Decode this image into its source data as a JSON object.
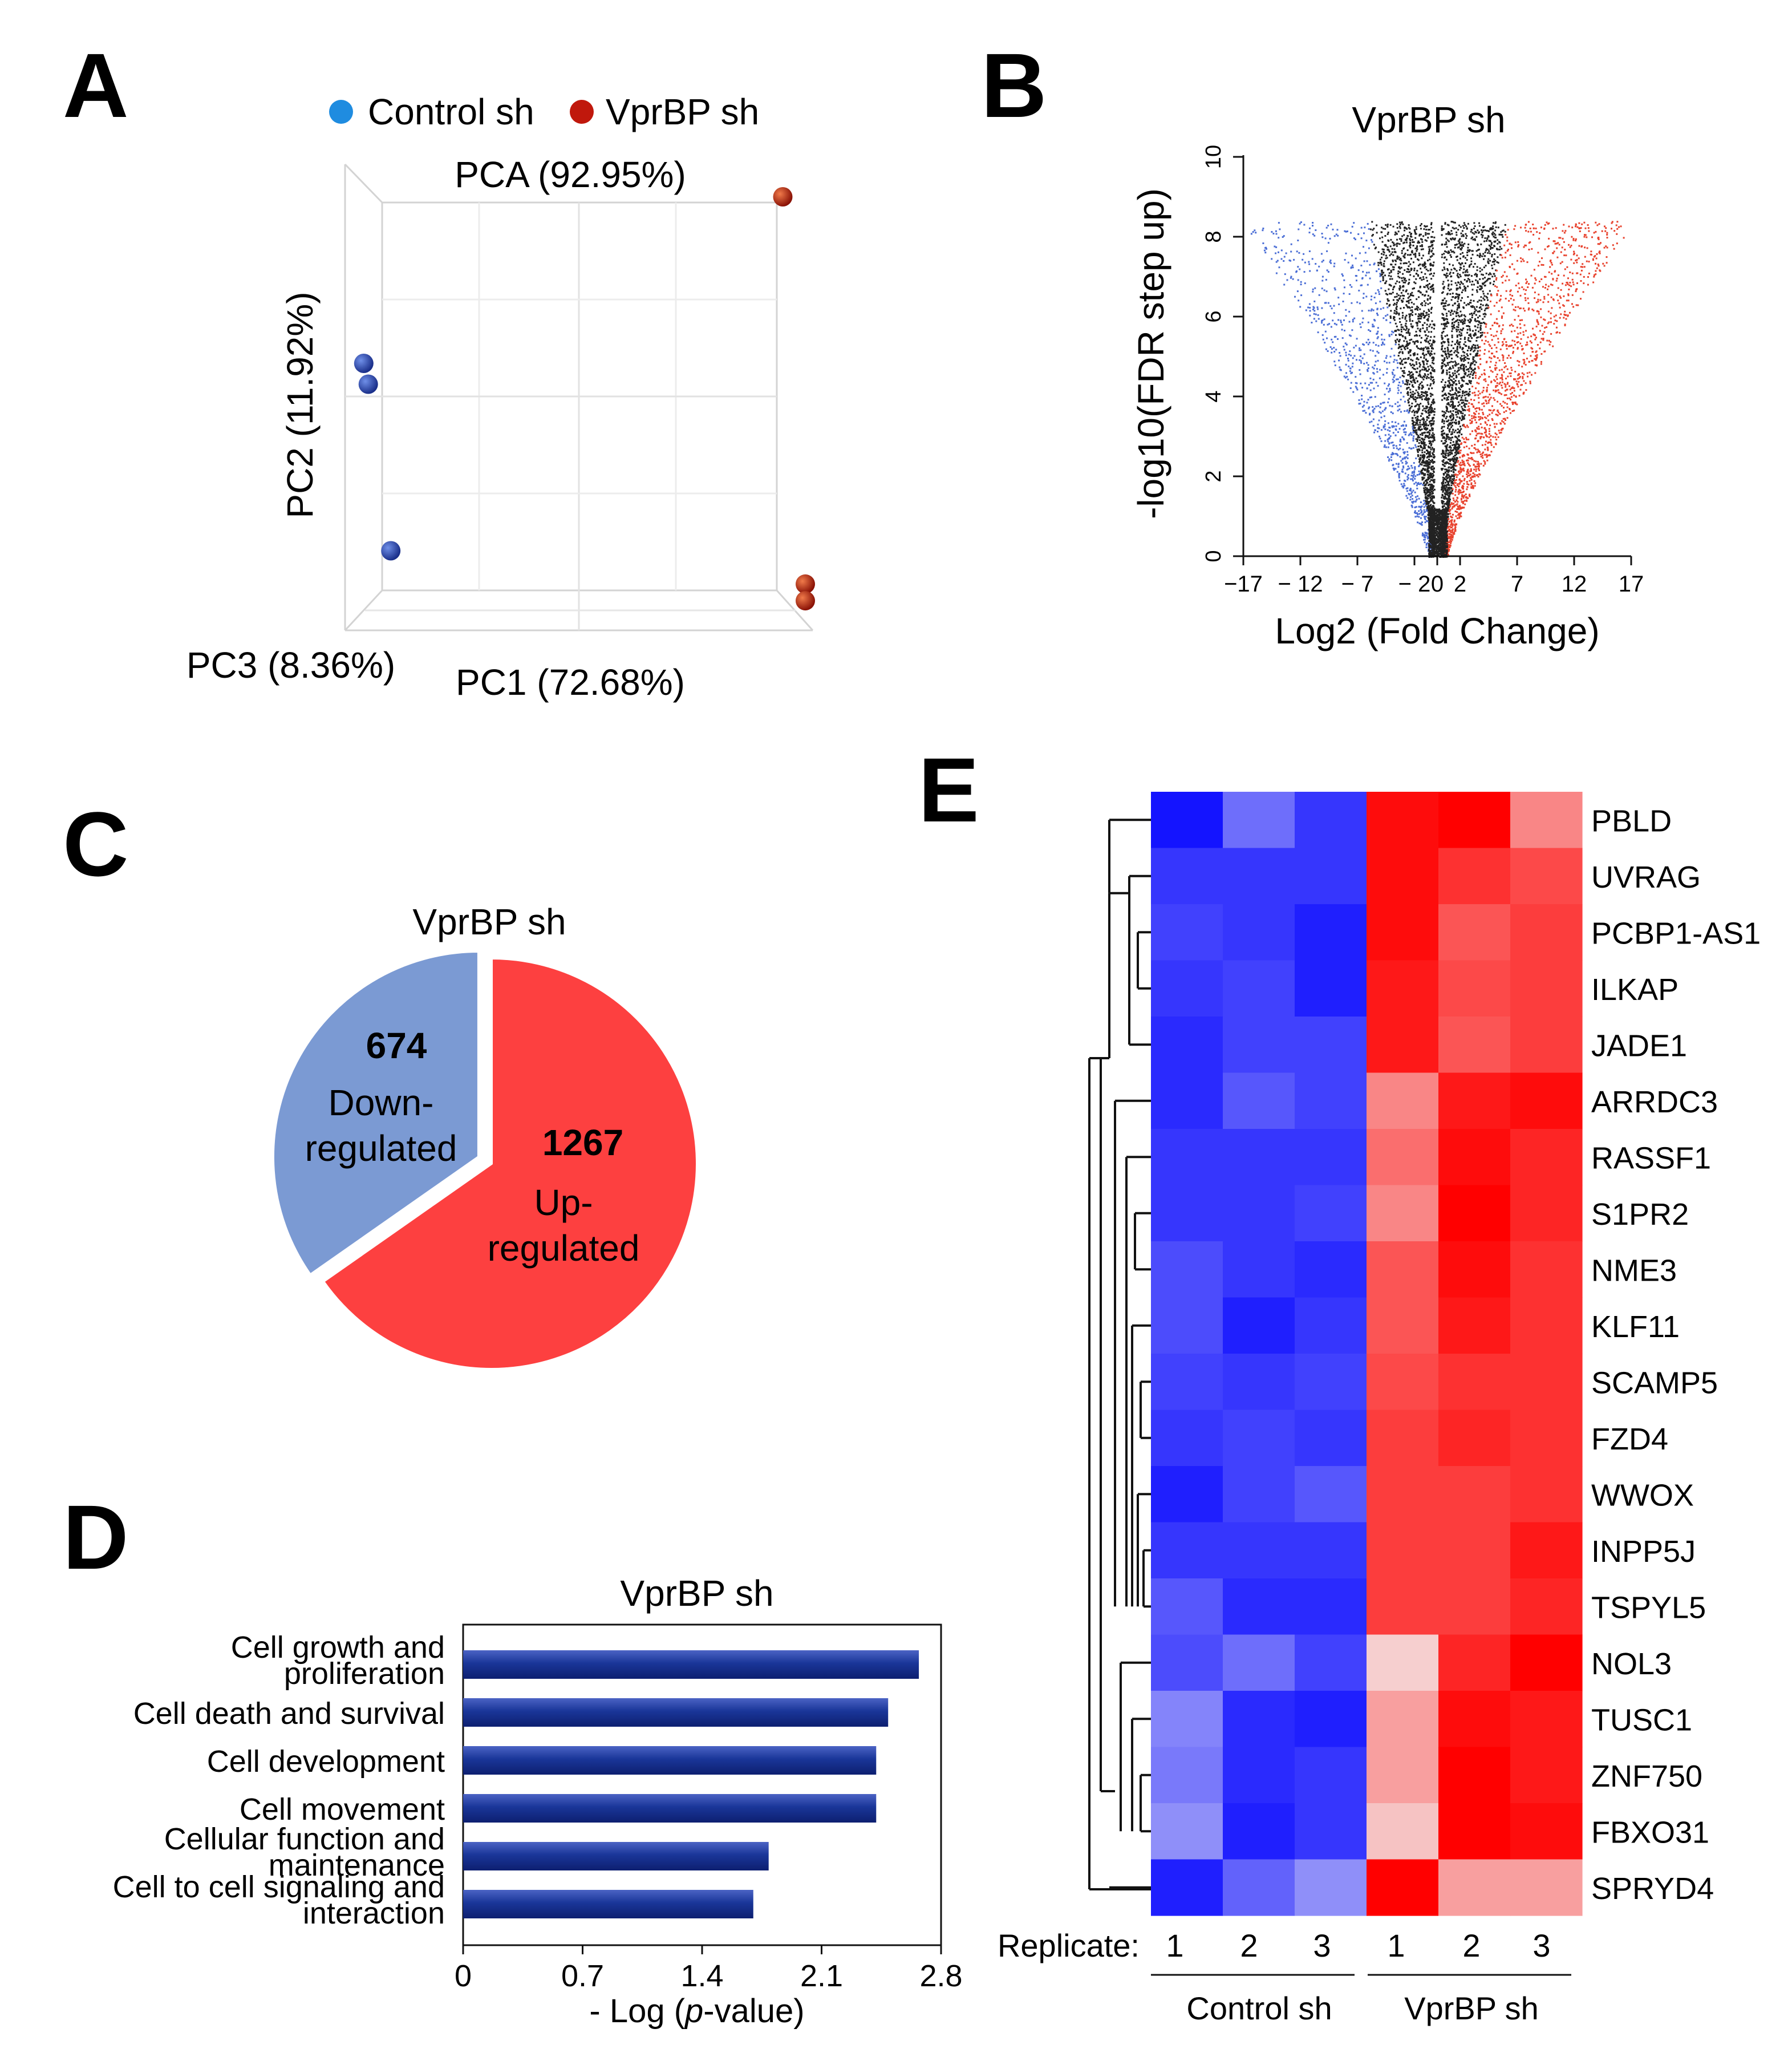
{
  "panel_letters": [
    "A",
    "B",
    "C",
    "D",
    "E"
  ],
  "colors": {
    "control": "#1f77d4",
    "vprbp": "#c0180c",
    "down": "#7b9ad3",
    "up": "#fd4040",
    "bar": "#1a3699",
    "heat_low": "#1414ff",
    "heat_mid": "#f4f4f4",
    "heat_high": "#ff0000",
    "volcano_up": "#e8432e",
    "volcano_down": "#4c6fd6",
    "volcano_ns": "#222222"
  },
  "chart_data": [
    {
      "panel": "A",
      "type": "scatter",
      "title": "PCA (92.95%)",
      "xlabel": "PC1 (72.68%)",
      "ylabel": "PC2 (11.92%)",
      "zlabel": "PC3 (8.36%)",
      "legend": [
        "Control sh",
        "VprBP sh"
      ],
      "legend_position": "top",
      "grid": true,
      "series": [
        {
          "name": "Control sh",
          "points": [
            {
              "pc1": 0.02,
              "pc2": 0.6,
              "pc3": 0.0
            },
            {
              "pc1": 0.03,
              "pc2": 0.55,
              "pc3": 0.0
            },
            {
              "pc1": 0.08,
              "pc2": 0.15,
              "pc3": 0.0
            }
          ]
        },
        {
          "name": "VprBP sh",
          "points": [
            {
              "pc1": 0.95,
              "pc2": 1.0,
              "pc3": 0.0
            },
            {
              "pc1": 1.0,
              "pc2": 0.07,
              "pc3": 0.0
            },
            {
              "pc1": 1.0,
              "pc2": 0.03,
              "pc3": 0.0
            }
          ]
        }
      ]
    },
    {
      "panel": "B",
      "type": "scatter",
      "title": "VprBP sh",
      "xlabel": "Log2 (Fold Change)",
      "ylabel": "-log10(FDR step up)",
      "xlim": [
        -17,
        17
      ],
      "ylim": [
        0,
        10
      ],
      "xticks": [
        "−17",
        "− 12",
        "− 7",
        "− 2",
        "0",
        "2",
        "7",
        "12",
        "17"
      ],
      "xtick_values": [
        -17,
        -12,
        -7,
        -2,
        0,
        2,
        7,
        12,
        17
      ],
      "yticks": [
        "0",
        "2",
        "4",
        "6",
        "8",
        "10"
      ],
      "ytick_values": [
        0,
        2,
        4,
        6,
        8,
        10
      ],
      "description_groups": [
        "down-regulated (blue)",
        "not significant (black)",
        "up-regulated (red)"
      ]
    },
    {
      "panel": "C",
      "type": "pie",
      "title": "VprBP sh",
      "slices": [
        {
          "value": 674,
          "count_label": "674",
          "label_lines": [
            "Down-",
            "regulated"
          ]
        },
        {
          "value": 1267,
          "count_label": "1267",
          "label_lines": [
            "Up-",
            "regulated"
          ]
        }
      ]
    },
    {
      "panel": "D",
      "type": "bar",
      "orientation": "horizontal",
      "title": "VprBP sh",
      "categories": [
        [
          "Cell growth and",
          "proliferation"
        ],
        [
          "Cell death and survival"
        ],
        [
          "Cell development"
        ],
        [
          "Cell movement"
        ],
        [
          "Cellular function and",
          "maintenance"
        ],
        [
          "Cell to cell signaling and",
          "interaction"
        ]
      ],
      "values": [
        2.67,
        2.49,
        2.42,
        2.42,
        1.79,
        1.7
      ],
      "xlim": [
        0,
        2.8
      ],
      "xticks": [
        "0",
        "0.7",
        "1.4",
        "2.1",
        "2.8"
      ],
      "xtick_values": [
        0,
        0.7,
        1.4,
        2.1,
        2.8
      ],
      "xlabel_prefix": "- Log (",
      "xlabel_italic": "p",
      "xlabel_suffix": "-value)"
    },
    {
      "panel": "E",
      "type": "heatmap",
      "genes": [
        "PBLD",
        "UVRAG",
        "PCBP1-AS1",
        "ILKAP",
        "JADE1",
        "ARRDC3",
        "RASSF1",
        "S1PR2",
        "NME3",
        "KLF11",
        "SCAMP5",
        "FZD4",
        "WWOX",
        "INPP5J",
        "TSPYL5",
        "NOL3",
        "TUSC1",
        "ZNF750",
        "FBXO31",
        "SPRYD4"
      ],
      "replicate_label": "Replicate:",
      "replicates": [
        "1",
        "2",
        "3",
        "1",
        "2",
        "3"
      ],
      "groups": [
        "Control sh",
        "VprBP sh"
      ],
      "values": [
        [
          -1.0,
          -0.6,
          -0.85,
          0.95,
          1.0,
          0.45
        ],
        [
          -0.85,
          -0.85,
          -0.85,
          0.95,
          0.8,
          0.7
        ],
        [
          -0.8,
          -0.85,
          -0.95,
          0.95,
          0.65,
          0.75
        ],
        [
          -0.85,
          -0.8,
          -0.95,
          0.9,
          0.7,
          0.75
        ],
        [
          -0.9,
          -0.8,
          -0.8,
          0.9,
          0.65,
          0.75
        ],
        [
          -0.9,
          -0.7,
          -0.8,
          0.45,
          0.9,
          0.95
        ],
        [
          -0.85,
          -0.85,
          -0.85,
          0.55,
          0.95,
          0.85
        ],
        [
          -0.85,
          -0.85,
          -0.8,
          0.45,
          1.0,
          0.85
        ],
        [
          -0.75,
          -0.85,
          -0.9,
          0.65,
          0.95,
          0.8
        ],
        [
          -0.75,
          -0.95,
          -0.85,
          0.65,
          0.9,
          0.8
        ],
        [
          -0.8,
          -0.85,
          -0.8,
          0.7,
          0.8,
          0.8
        ],
        [
          -0.85,
          -0.8,
          -0.85,
          0.75,
          0.85,
          0.8
        ],
        [
          -0.95,
          -0.8,
          -0.7,
          0.75,
          0.75,
          0.8
        ],
        [
          -0.85,
          -0.85,
          -0.85,
          0.75,
          0.75,
          0.9
        ],
        [
          -0.7,
          -0.9,
          -0.9,
          0.75,
          0.75,
          0.85
        ],
        [
          -0.75,
          -0.6,
          -0.8,
          0.15,
          0.85,
          1.0
        ],
        [
          -0.5,
          -0.9,
          -0.95,
          0.35,
          0.95,
          0.9
        ],
        [
          -0.55,
          -0.9,
          -0.85,
          0.35,
          1.0,
          0.9
        ],
        [
          -0.45,
          -0.95,
          -0.85,
          0.2,
          1.0,
          0.95
        ],
        [
          -0.95,
          -0.65,
          -0.45,
          1.0,
          0.35,
          0.35
        ]
      ]
    }
  ]
}
